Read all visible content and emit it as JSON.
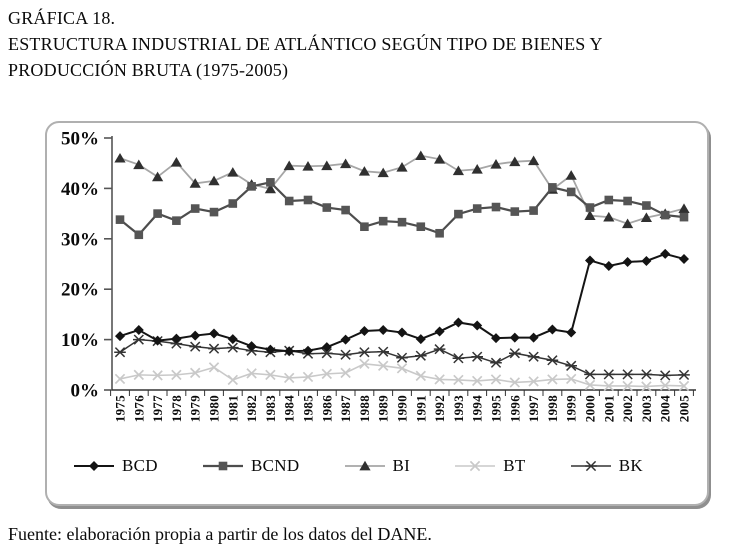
{
  "title": {
    "line1": "GRÁFICA 18.",
    "line2": "ESTRUCTURA INDUSTRIAL DE ATLÁNTICO SEGÚN TIPO DE BIENES Y",
    "line3": "PRODUCCIÓN BRUTA (1975-2005)"
  },
  "footer": {
    "source": "Fuente: elaboración propia a partir de los datos del DANE."
  },
  "chart_data": {
    "type": "line",
    "title": "Estructura industrial de Atlántico según tipo de bienes y producción bruta (1975-2005)",
    "xlabel": "",
    "ylabel": "",
    "ylim": [
      0,
      50
    ],
    "yticks": [
      "0%",
      "10%",
      "20%",
      "30%",
      "40%",
      "50%"
    ],
    "grid": false,
    "legend_position": "bottom",
    "x": [
      "1975",
      "1976",
      "1977",
      "1978",
      "1979",
      "1980",
      "1981",
      "1982",
      "1983",
      "1984",
      "1985",
      "1986",
      "1987",
      "1988",
      "1989",
      "1990",
      "1991",
      "1992",
      "1993",
      "1994",
      "1995",
      "1996",
      "1997",
      "1998",
      "1999",
      "2000",
      "2001",
      "2002",
      "2003",
      "2004",
      "2005"
    ],
    "series": [
      {
        "name": "BCD",
        "marker": "diamond",
        "line_color": "#141414",
        "marker_color": "#141414",
        "line_width": 2,
        "values": [
          10.7,
          11.9,
          9.8,
          10.2,
          10.8,
          11.2,
          10.1,
          8.7,
          8.0,
          7.7,
          7.8,
          8.5,
          10.0,
          11.7,
          11.9,
          11.4,
          10.1,
          11.6,
          13.4,
          12.8,
          10.3,
          10.4,
          10.4,
          12.0,
          11.4,
          25.7,
          24.6,
          25.4,
          25.6,
          27.0,
          26.0
        ]
      },
      {
        "name": "BCND",
        "marker": "square",
        "line_color": "#4d4d4d",
        "marker_color": "#555555",
        "line_width": 2.2,
        "values": [
          33.8,
          30.8,
          35.0,
          33.6,
          36.0,
          35.3,
          37.0,
          40.4,
          41.2,
          37.5,
          37.7,
          36.2,
          35.7,
          32.4,
          33.5,
          33.3,
          32.4,
          31.1,
          34.9,
          36.0,
          36.3,
          35.4,
          35.6,
          40.2,
          39.3,
          36.2,
          37.7,
          37.5,
          36.6,
          34.7,
          34.3
        ]
      },
      {
        "name": "BI",
        "marker": "triangle",
        "line_color": "#a6a6a6",
        "marker_color": "#303030",
        "line_width": 1.8,
        "values": [
          46.0,
          44.7,
          42.3,
          45.2,
          41.0,
          41.5,
          43.2,
          40.8,
          39.9,
          44.5,
          44.4,
          44.5,
          44.9,
          43.4,
          43.1,
          44.2,
          46.5,
          45.8,
          43.5,
          43.8,
          44.8,
          45.3,
          45.5,
          39.8,
          42.6,
          34.6,
          34.3,
          33.0,
          34.2,
          35.0,
          36.0
        ]
      },
      {
        "name": "BT",
        "marker": "x",
        "line_color": "#c9c9c9",
        "marker_color": "#c9c9c9",
        "line_width": 1.6,
        "values": [
          2.2,
          3.0,
          2.9,
          3.0,
          3.4,
          4.5,
          2.0,
          3.3,
          3.0,
          2.4,
          2.6,
          3.2,
          3.4,
          5.2,
          4.8,
          4.3,
          2.8,
          2.1,
          2.0,
          1.8,
          2.1,
          1.5,
          1.7,
          2.1,
          2.2,
          1.0,
          0.8,
          0.8,
          0.7,
          0.9,
          0.8
        ]
      },
      {
        "name": "BK",
        "marker": "asterisk",
        "line_color": "#343434",
        "marker_color": "#343434",
        "line_width": 1.5,
        "values": [
          7.5,
          10.0,
          9.7,
          9.2,
          8.6,
          8.2,
          8.4,
          7.8,
          7.5,
          7.8,
          7.2,
          7.3,
          7.0,
          7.5,
          7.6,
          6.4,
          6.8,
          8.1,
          6.3,
          6.6,
          5.4,
          7.3,
          6.6,
          5.9,
          4.8,
          3.1,
          3.1,
          3.1,
          3.1,
          2.9,
          3.0
        ]
      }
    ]
  }
}
